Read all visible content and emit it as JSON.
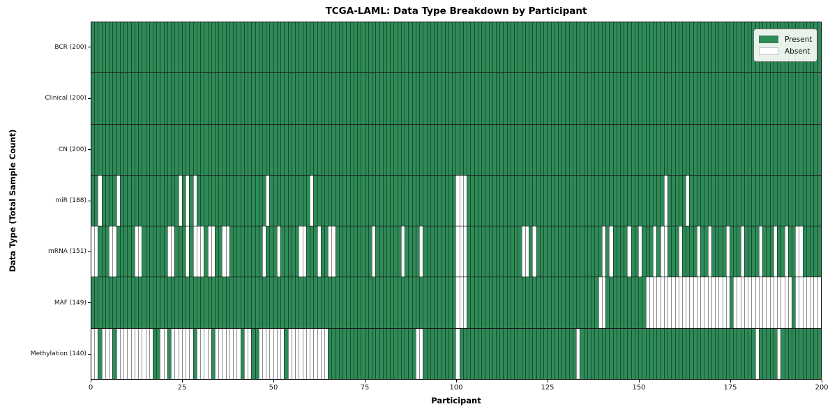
{
  "chart_data": {
    "type": "heatmap",
    "title": "TCGA-LAML: Data Type Breakdown by Participant",
    "xlabel": "Participant",
    "ylabel": "Data Type (Total Sample Count)",
    "x_ticks": [
      0,
      25,
      50,
      75,
      100,
      125,
      150,
      175,
      200
    ],
    "x_range": [
      0,
      200
    ],
    "n_participants": 200,
    "grid": "per-cell vertical edges, black row separators",
    "legend_position": "upper right",
    "colors": {
      "present": "#2e8b57",
      "absent": "#ffffff",
      "cell_edge": "rgba(0,0,0,0.45)"
    },
    "legend": [
      {
        "label": "Present",
        "color": "#2e8b57"
      },
      {
        "label": "Absent",
        "color": "#ffffff"
      }
    ],
    "rows": [
      {
        "label": "BCR (200)",
        "data_type": "BCR",
        "present_count": 200,
        "absent_count": 0,
        "absent": []
      },
      {
        "label": "Clinical (200)",
        "data_type": "Clinical",
        "present_count": 200,
        "absent_count": 0,
        "absent": []
      },
      {
        "label": "CN (200)",
        "data_type": "CN",
        "present_count": 200,
        "absent_count": 0,
        "absent": []
      },
      {
        "label": "miR (188)",
        "data_type": "miR",
        "present_count": 188,
        "absent_count": 12,
        "absent": [
          2,
          7,
          24,
          26,
          28,
          48,
          60,
          100,
          101,
          102,
          157,
          163
        ]
      },
      {
        "label": "mRNA (151)",
        "data_type": "mRNA",
        "present_count": 151,
        "absent_count": 49,
        "absent": [
          0,
          1,
          5,
          6,
          12,
          13,
          21,
          22,
          26,
          28,
          29,
          30,
          32,
          33,
          36,
          37,
          47,
          51,
          57,
          58,
          62,
          65,
          66,
          77,
          85,
          90,
          100,
          101,
          102,
          118,
          119,
          121,
          140,
          142,
          147,
          150,
          154,
          156,
          157,
          161,
          166,
          169,
          174,
          178,
          183,
          187,
          190,
          193,
          194
        ]
      },
      {
        "label": "MAF (149)",
        "data_type": "MAF",
        "present_count": 149,
        "absent_count": 51,
        "absent": [
          100,
          101,
          102,
          139,
          140,
          152,
          153,
          154,
          155,
          156,
          157,
          158,
          159,
          160,
          161,
          162,
          163,
          164,
          165,
          166,
          167,
          168,
          169,
          170,
          171,
          172,
          173,
          174,
          176,
          177,
          178,
          179,
          180,
          181,
          182,
          183,
          184,
          185,
          186,
          187,
          188,
          189,
          190,
          191,
          193,
          194,
          195,
          196,
          197,
          198,
          199
        ]
      },
      {
        "label": "Methylation (140)",
        "data_type": "Methylation",
        "present_count": 140,
        "absent_count": 60,
        "absent": [
          0,
          1,
          3,
          4,
          5,
          7,
          8,
          9,
          10,
          11,
          12,
          13,
          14,
          15,
          16,
          19,
          20,
          22,
          23,
          24,
          25,
          26,
          27,
          29,
          30,
          31,
          32,
          34,
          35,
          36,
          37,
          38,
          39,
          40,
          42,
          43,
          46,
          47,
          48,
          49,
          50,
          51,
          52,
          54,
          55,
          56,
          57,
          58,
          59,
          60,
          61,
          62,
          63,
          64,
          89,
          90,
          100,
          133,
          182,
          188
        ]
      }
    ]
  }
}
